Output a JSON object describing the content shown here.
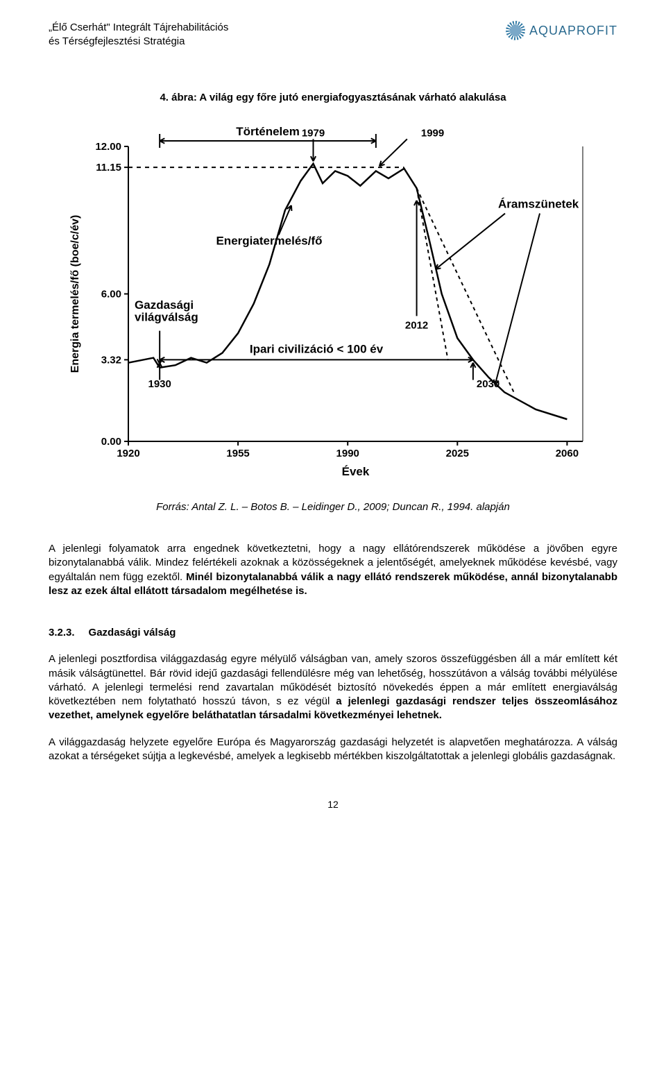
{
  "header": {
    "doc_title_line1": "„Élő Cserhát\" Integrált Tájrehabilitációs",
    "doc_title_line2": "és Térségfejlesztési Stratégia",
    "logo_name": "AQUAPROFIT",
    "logo_color": "#2a6a8f"
  },
  "figure": {
    "caption": "4. ábra: A világ egy főre jutó energiafogyasztásának várható alakulása",
    "source": "Forrás: Antal Z. L. – Botos B. – Leidinger D., 2009; Duncan R., 1994. alapján"
  },
  "chart": {
    "type": "line",
    "y_axis_label": "Energia termelés/fő (boe/c/év)",
    "x_axis_label": "Évek",
    "y_ticks": [
      {
        "v": 0.0,
        "label": "0.00"
      },
      {
        "v": 3.32,
        "label": "3.32"
      },
      {
        "v": 6.0,
        "label": "6.00"
      },
      {
        "v": 11.15,
        "label": "11.15"
      },
      {
        "v": 12.0,
        "label": "12.00"
      }
    ],
    "y_lim": [
      0,
      12
    ],
    "x_ticks": [
      1920,
      1955,
      1990,
      2025,
      2060
    ],
    "x_lim": [
      1920,
      2065
    ],
    "line_color": "#000000",
    "line_width": 2.5,
    "background_color": "#ffffff",
    "annotations": {
      "top_center": "Történelem",
      "middle_left": "Energiatermelés/fő",
      "middle_right": "Áramszünetek",
      "lower_left": "Gazdasági világválság",
      "lower_center": "Ipari civilizáció < 100 év",
      "year_labels": [
        "1930",
        "1979",
        "1999",
        "2012",
        "2030"
      ]
    },
    "curve_points": [
      {
        "x": 1920,
        "y": 3.2
      },
      {
        "x": 1928,
        "y": 3.4
      },
      {
        "x": 1930,
        "y": 3.0
      },
      {
        "x": 1935,
        "y": 3.1
      },
      {
        "x": 1940,
        "y": 3.4
      },
      {
        "x": 1945,
        "y": 3.2
      },
      {
        "x": 1950,
        "y": 3.6
      },
      {
        "x": 1955,
        "y": 4.4
      },
      {
        "x": 1960,
        "y": 5.6
      },
      {
        "x": 1965,
        "y": 7.2
      },
      {
        "x": 1970,
        "y": 9.4
      },
      {
        "x": 1975,
        "y": 10.6
      },
      {
        "x": 1979,
        "y": 11.3
      },
      {
        "x": 1982,
        "y": 10.5
      },
      {
        "x": 1986,
        "y": 11.0
      },
      {
        "x": 1990,
        "y": 10.8
      },
      {
        "x": 1994,
        "y": 10.4
      },
      {
        "x": 1999,
        "y": 11.0
      },
      {
        "x": 2003,
        "y": 10.7
      },
      {
        "x": 2008,
        "y": 11.1
      },
      {
        "x": 2012,
        "y": 10.3
      },
      {
        "x": 2016,
        "y": 8.2
      },
      {
        "x": 2020,
        "y": 6.0
      },
      {
        "x": 2025,
        "y": 4.2
      },
      {
        "x": 2030,
        "y": 3.32
      },
      {
        "x": 2035,
        "y": 2.6
      },
      {
        "x": 2040,
        "y": 2.0
      },
      {
        "x": 2050,
        "y": 1.3
      },
      {
        "x": 2060,
        "y": 0.9
      }
    ],
    "tortenelem_range": [
      1930,
      1999
    ],
    "ipari_range": [
      1930,
      2030
    ],
    "dashed_y": 11.15,
    "dashed_x_end": 2008,
    "blackouts_from": [
      2018,
      7.0
    ],
    "blackouts_to": [
      2037,
      2.3
    ]
  },
  "body": {
    "para1_a": "A jelenlegi folyamatok arra engednek következtetni, hogy a nagy ellátórendszerek működése a jövőben egyre bizonytalanabbá válik. Mindez felértékeli azoknak a közösségeknek a jelentőségét, amelyeknek működése kevésbé, vagy egyáltalán nem függ ezektől. ",
    "para1_b": "Minél bizonytalanabbá válik a nagy ellátó rendszerek működése, annál bizonytalanabb lesz az ezek által ellátott társadalom megélhetése is.",
    "section_num": "3.2.3.",
    "section_title": "Gazdasági válság",
    "para2_a": "A jelenlegi posztfordisa világgazdaság egyre mélyülő válságban van, amely szoros összefüggésben áll a már említett két másik válságtünettel. Bár rövid idejű gazdasági fellendülésre még van lehetőség, hosszútávon a válság további mélyülése várható. A jelenlegi termelési rend zavartalan működését biztosító növekedés éppen a már említett energiaválság következtében nem folytatható hosszú távon, s ez végül ",
    "para2_b": "a jelenlegi gazdasági rendszer teljes összeomlásához vezethet, amelynek egyelőre beláthatatlan társadalmi következményei lehetnek.",
    "para3": "A világgazdaság helyzete egyelőre Európa és Magyarország gazdasági helyzetét is alapvetően meghatározza. A válság azokat a térségeket sújtja a legkevésbé, amelyek a legkisebb mértékben kiszolgáltatottak a jelenlegi globális gazdaságnak.",
    "page_number": "12"
  }
}
